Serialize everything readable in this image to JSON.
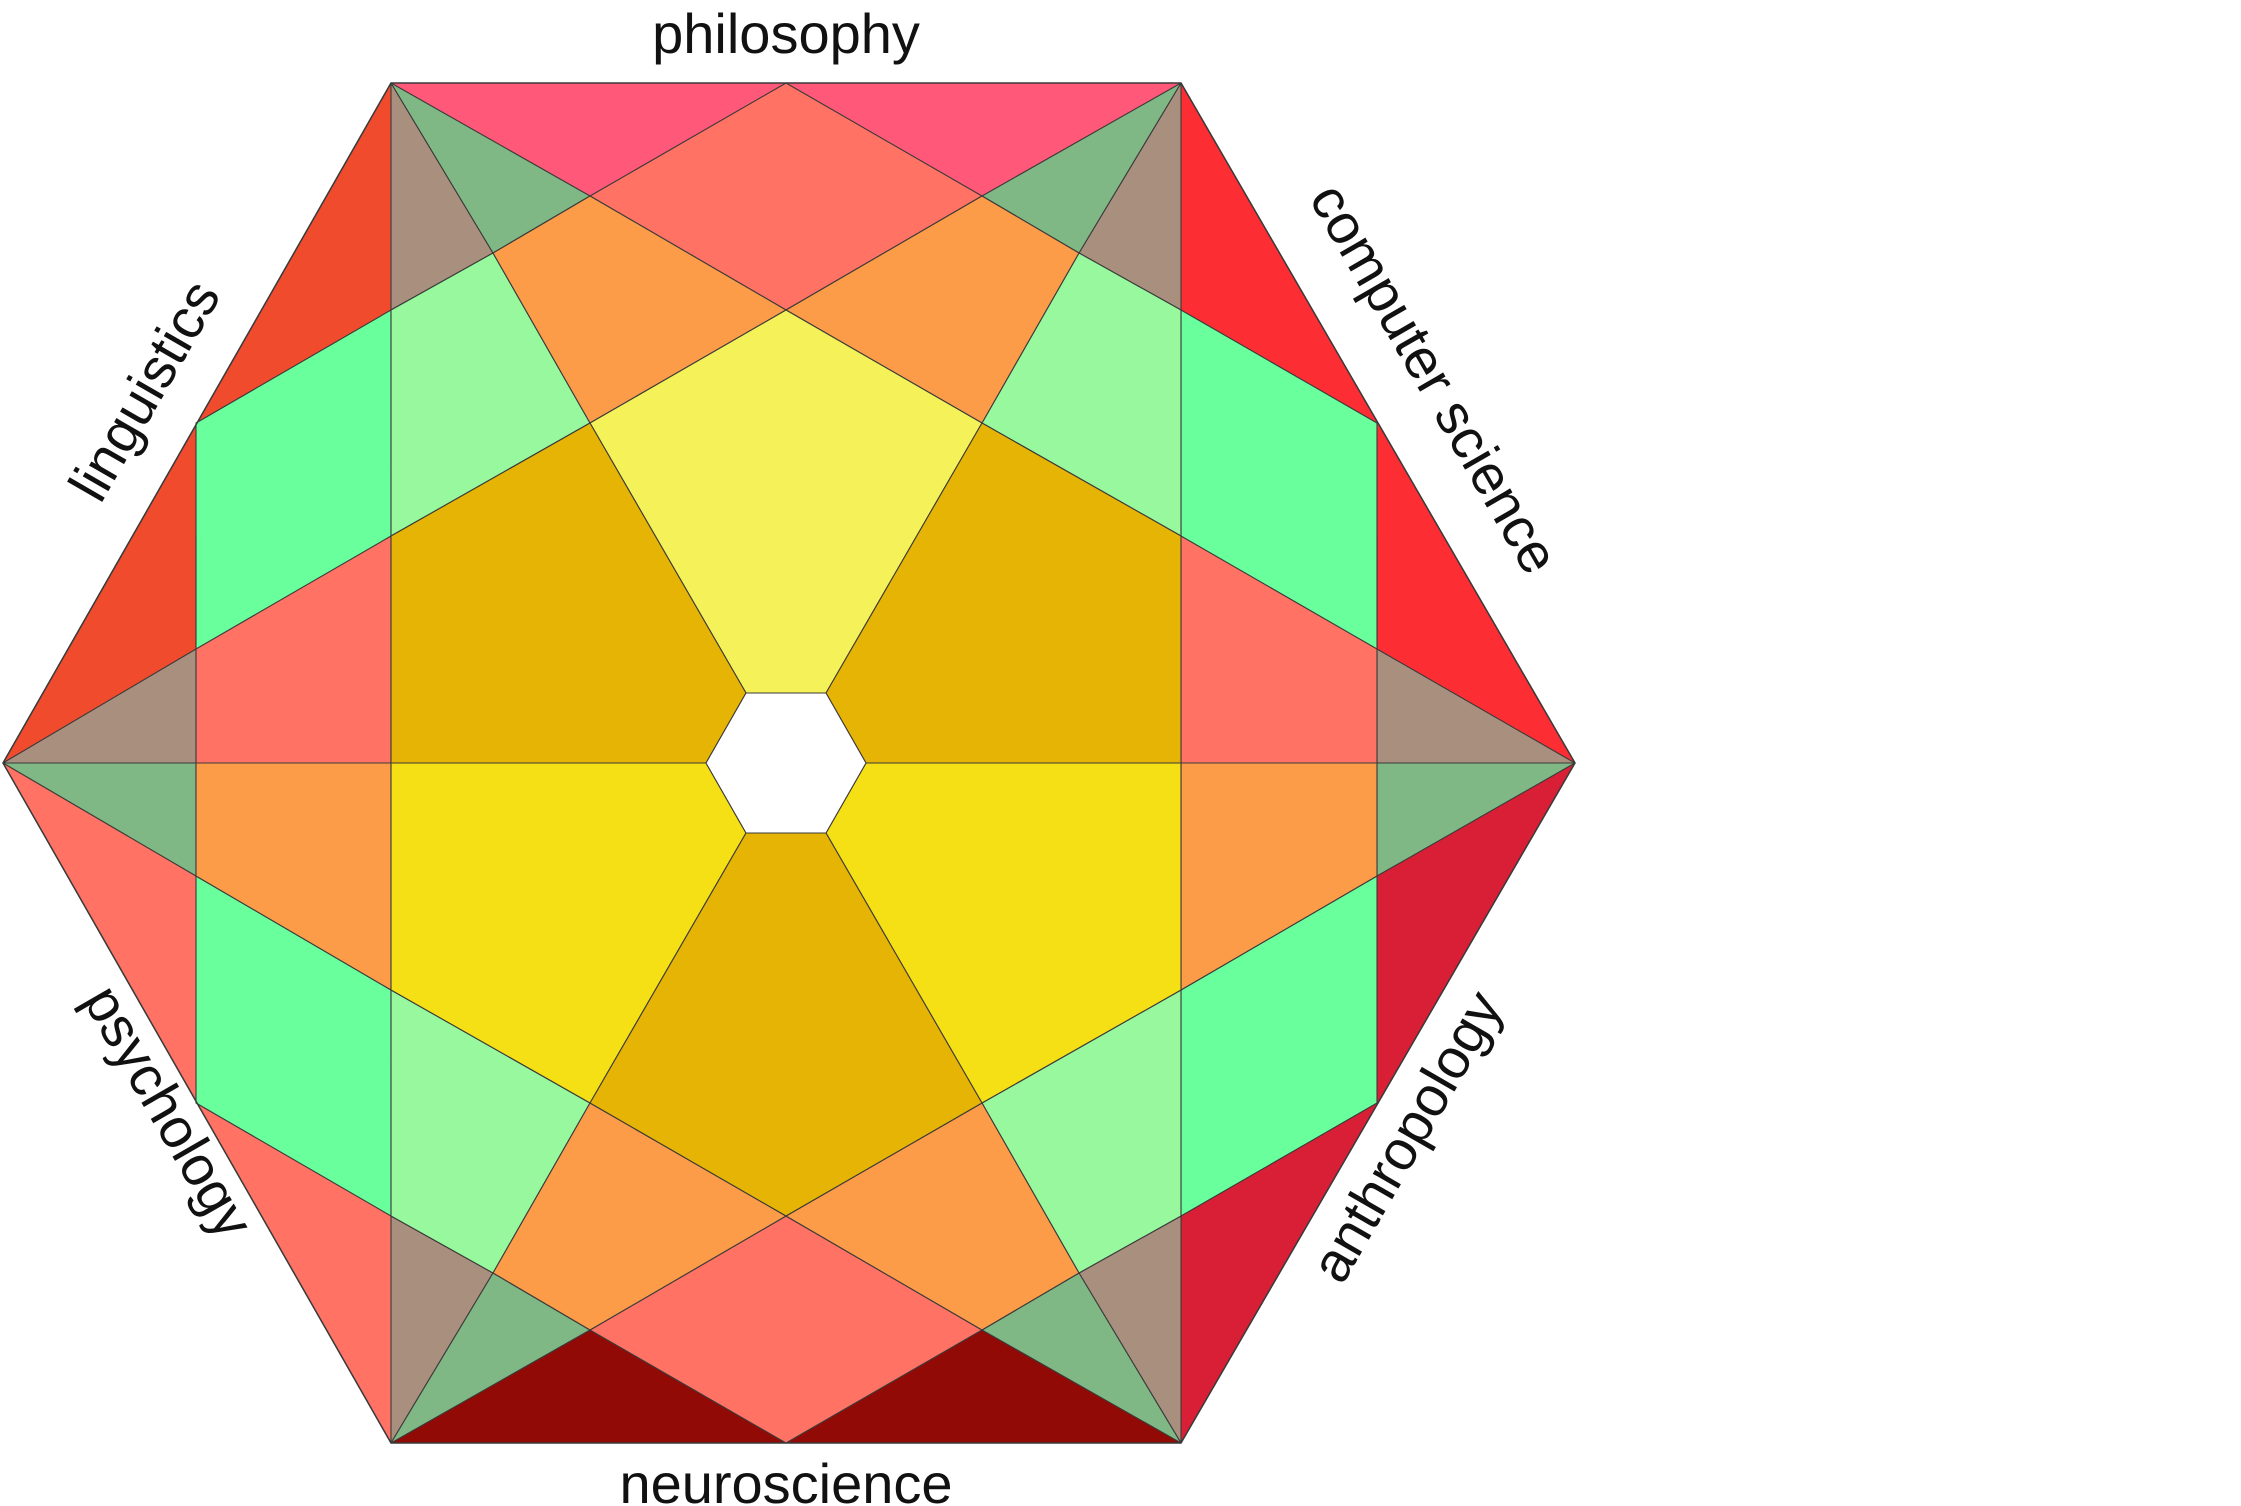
{
  "diagram": {
    "labels": {
      "top": "philosophy",
      "upper_right": "computer science",
      "lower_right": "anthropology",
      "bottom": "neuroscience",
      "lower_left": "psychology",
      "upper_left": "linguistics"
    },
    "colors": {
      "background": "#ffffff",
      "outline": "#3a3a3a",
      "center": "#ffffff",
      "edge_top": "#ff5878",
      "edge_upper_right": "#fc2d33",
      "edge_lower_right": "#d81f36",
      "edge_bottom": "#920a05",
      "edge_lower_left": "#ff7264",
      "edge_upper_left": "#f14b2d",
      "pink_band": "#ff7264",
      "orange": "#fd9c48",
      "mint": "#6aff9d",
      "light_green": "#97f89e",
      "sage": "#7fb884",
      "taupe": "#a98f7e",
      "gold": "#e6b404",
      "yellow": "#f5df15",
      "light_yellow": "#f5f159"
    }
  }
}
